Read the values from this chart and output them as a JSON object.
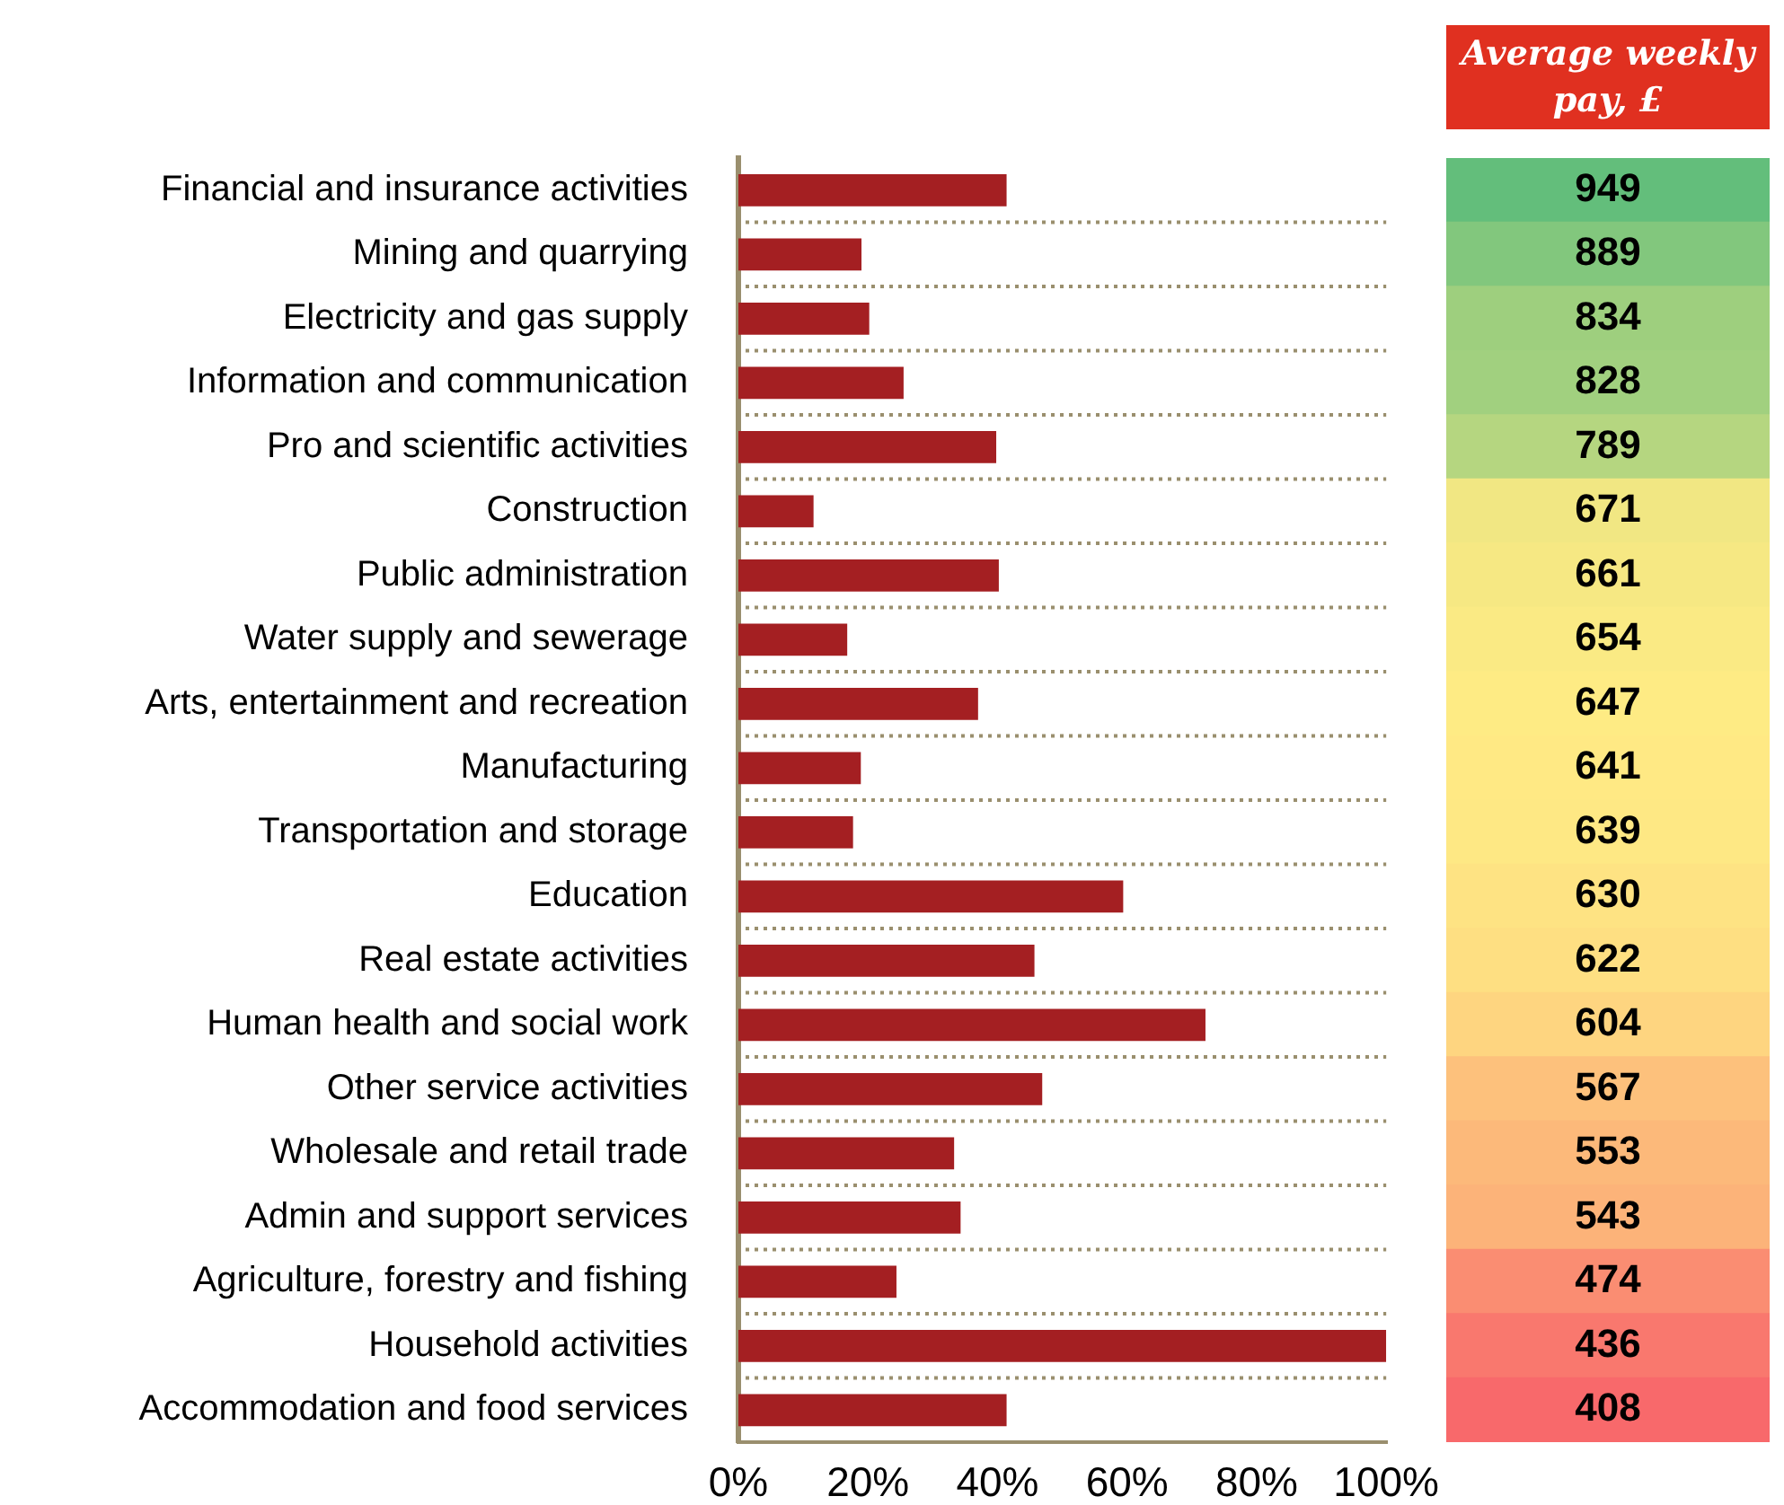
{
  "chart_data": [
    {
      "type": "bar",
      "orientation": "horizontal",
      "categories": [
        "Financial and insurance activities",
        "Mining and quarrying",
        "Electricity and gas supply",
        "Information and communication",
        "Pro and scientific activities",
        "Construction",
        "Public administration",
        "Water supply and sewerage",
        "Arts, entertainment and recreation",
        "Manufacturing",
        "Transportation and storage",
        "Education",
        "Real estate activities",
        "Human health and social work",
        "Other service activities",
        "Wholesale and retail trade",
        "Admin and support services",
        "Agriculture, forestry and fishing",
        "Household activities",
        "Accommodation and food services"
      ],
      "values": [
        41.4,
        19.0,
        20.2,
        25.5,
        39.8,
        11.6,
        40.2,
        16.8,
        37.0,
        18.9,
        17.7,
        59.4,
        45.7,
        72.1,
        46.9,
        33.3,
        34.3,
        24.4,
        100,
        41.4
      ],
      "color": "#a41f22",
      "xlim": [
        0,
        100
      ],
      "xticks": [
        {
          "value": 0,
          "label": "0%"
        },
        {
          "value": 20,
          "label": "20%"
        },
        {
          "value": 40,
          "label": "40%"
        },
        {
          "value": 60,
          "label": "60%"
        },
        {
          "value": 80,
          "label": "80%"
        },
        {
          "value": 100,
          "label": "100%"
        }
      ],
      "grid": "y"
    },
    {
      "type": "other",
      "title": "Average weekly pay, £",
      "data_labels": true,
      "values": [
        949,
        889,
        834,
        828,
        789,
        671,
        661,
        654,
        647,
        641,
        639,
        630,
        622,
        604,
        567,
        553,
        543,
        474,
        436,
        408
      ],
      "colors": [
        "#63be7b",
        "#82c77d",
        "#9ecf7e",
        "#a1d07f",
        "#b5d680",
        "#f1e783",
        "#f6e883",
        "#faea84",
        "#feeb84",
        "#ffe984",
        "#fee884",
        "#fee383",
        "#fedf82",
        "#fed580",
        "#fdc17c",
        "#fcb97a",
        "#fcb379",
        "#fa8d72",
        "#f9786e",
        "#f8696b"
      ]
    }
  ]
}
